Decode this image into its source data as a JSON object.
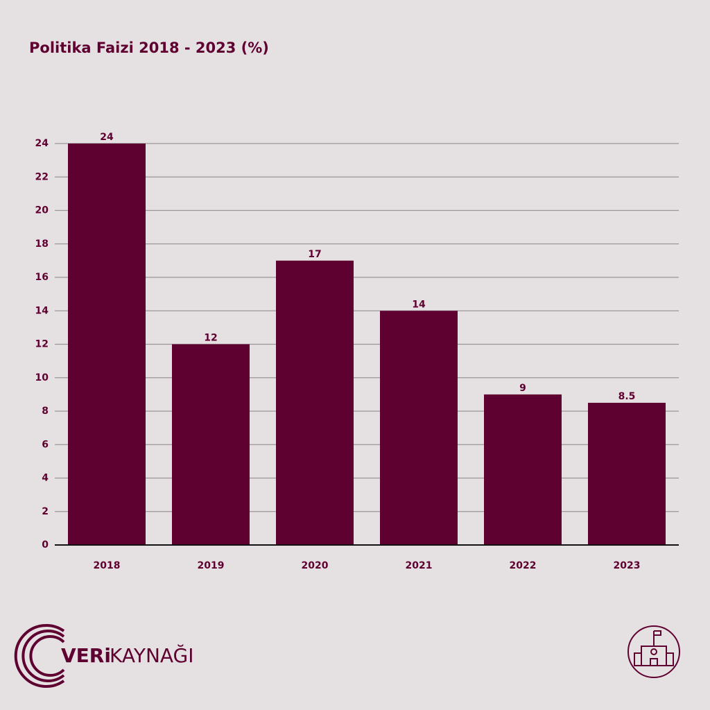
{
  "chart_data": {
    "type": "bar",
    "title": "Politika Faizi 2018 - 2023 (%)",
    "categories": [
      "2018",
      "2019",
      "2020",
      "2021",
      "2022",
      "2023"
    ],
    "values": [
      24,
      12,
      17,
      14,
      9,
      8.5
    ],
    "color": "#5e0030",
    "ylim": [
      0,
      24
    ],
    "yticks": [
      0,
      2,
      4,
      6,
      8,
      10,
      12,
      14,
      16,
      18,
      20,
      22,
      24
    ],
    "grid": true
  },
  "logo": {
    "strong": "VERi",
    "rest": "KAYNAĞI"
  }
}
